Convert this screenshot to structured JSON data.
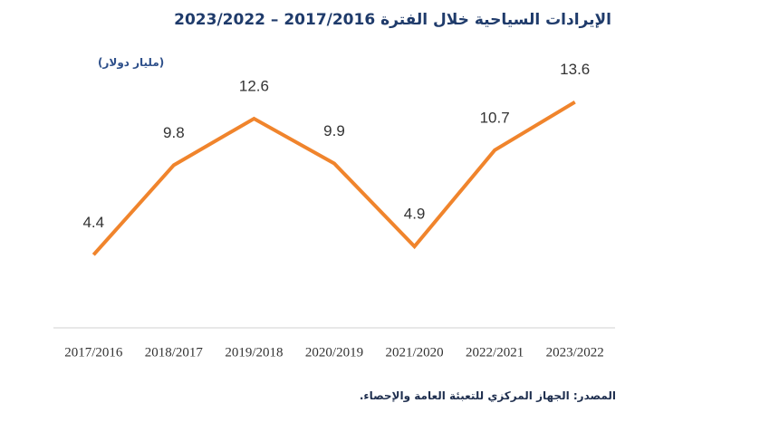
{
  "chart_data": {
    "type": "line",
    "title": "الإيرادات السياحية خلال الفترة 2017/2016 – 2023/2022",
    "y_label": "(مليار دولار)",
    "source": "المصدر: الجهاز المركزي للتعبئة العامة والإحصاء.",
    "categories": [
      "2017/2016",
      "2018/2017",
      "2019/2018",
      "2020/2019",
      "2021/2020",
      "2022/2021",
      "2023/2022"
    ],
    "values": [
      4.4,
      9.8,
      12.6,
      9.9,
      4.9,
      10.7,
      13.6
    ],
    "color": "#f0842c",
    "ylim": [
      0,
      15
    ]
  }
}
